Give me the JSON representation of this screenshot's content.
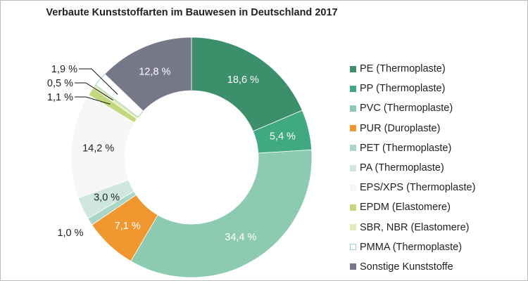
{
  "chart_data": {
    "type": "pie",
    "donut": true,
    "title": "Verbaute Kunststoffarten im Bauwesen in Deutschland 2017",
    "legend_position": "right",
    "slices": [
      {
        "name": "PE (Thermoplaste)",
        "value": 18.6,
        "label": "18,6 %",
        "color": "#3b8f6b",
        "label_color": "#ffffff"
      },
      {
        "name": "PP (Thermoplaste)",
        "value": 5.4,
        "label": "5,4 %",
        "color": "#40a982",
        "label_color": "#ffffff"
      },
      {
        "name": "PVC (Thermoplaste)",
        "value": 34.4,
        "label": "34,4 %",
        "color": "#8dcab2",
        "label_color": "#ffffff"
      },
      {
        "name": "PUR (Duroplaste)",
        "value": 7.1,
        "label": "7,1 %",
        "color": "#f0982f",
        "label_color": "#ffffff"
      },
      {
        "name": "PET (Thermoplaste)",
        "value": 1.0,
        "label": "1,0 %",
        "color": "#a9d6c6",
        "label_color": "#222222"
      },
      {
        "name": "PA (Thermoplaste)",
        "value": 3.0,
        "label": "3,0 %",
        "color": "#d0e7de",
        "label_color": "#222222"
      },
      {
        "name": "EPS/XPS (Thermoplaste)",
        "value": 14.2,
        "label": "14,2 %",
        "color": "#f4f7f5",
        "label_color": "#222222"
      },
      {
        "name": "EPDM (Elastomere)",
        "value": 1.1,
        "label": "1,1 %",
        "color": "#c4d77c",
        "label_color": "#222222"
      },
      {
        "name": "SBR, NBR (Elastomere)",
        "value": 0.5,
        "label": "0,5 %",
        "color": "#e2ecbb",
        "label_color": "#222222"
      },
      {
        "name": "PMMA (Thermoplaste)",
        "value": 1.9,
        "label": "1,9 %",
        "color": "#ffffff",
        "stroke": "#9dd2bf",
        "label_color": "#222222"
      },
      {
        "name": "Sonstige Kunststoffe",
        "value": 12.8,
        "label": "12,8 %",
        "color": "#77778a",
        "label_color": "#ffffff"
      }
    ]
  }
}
